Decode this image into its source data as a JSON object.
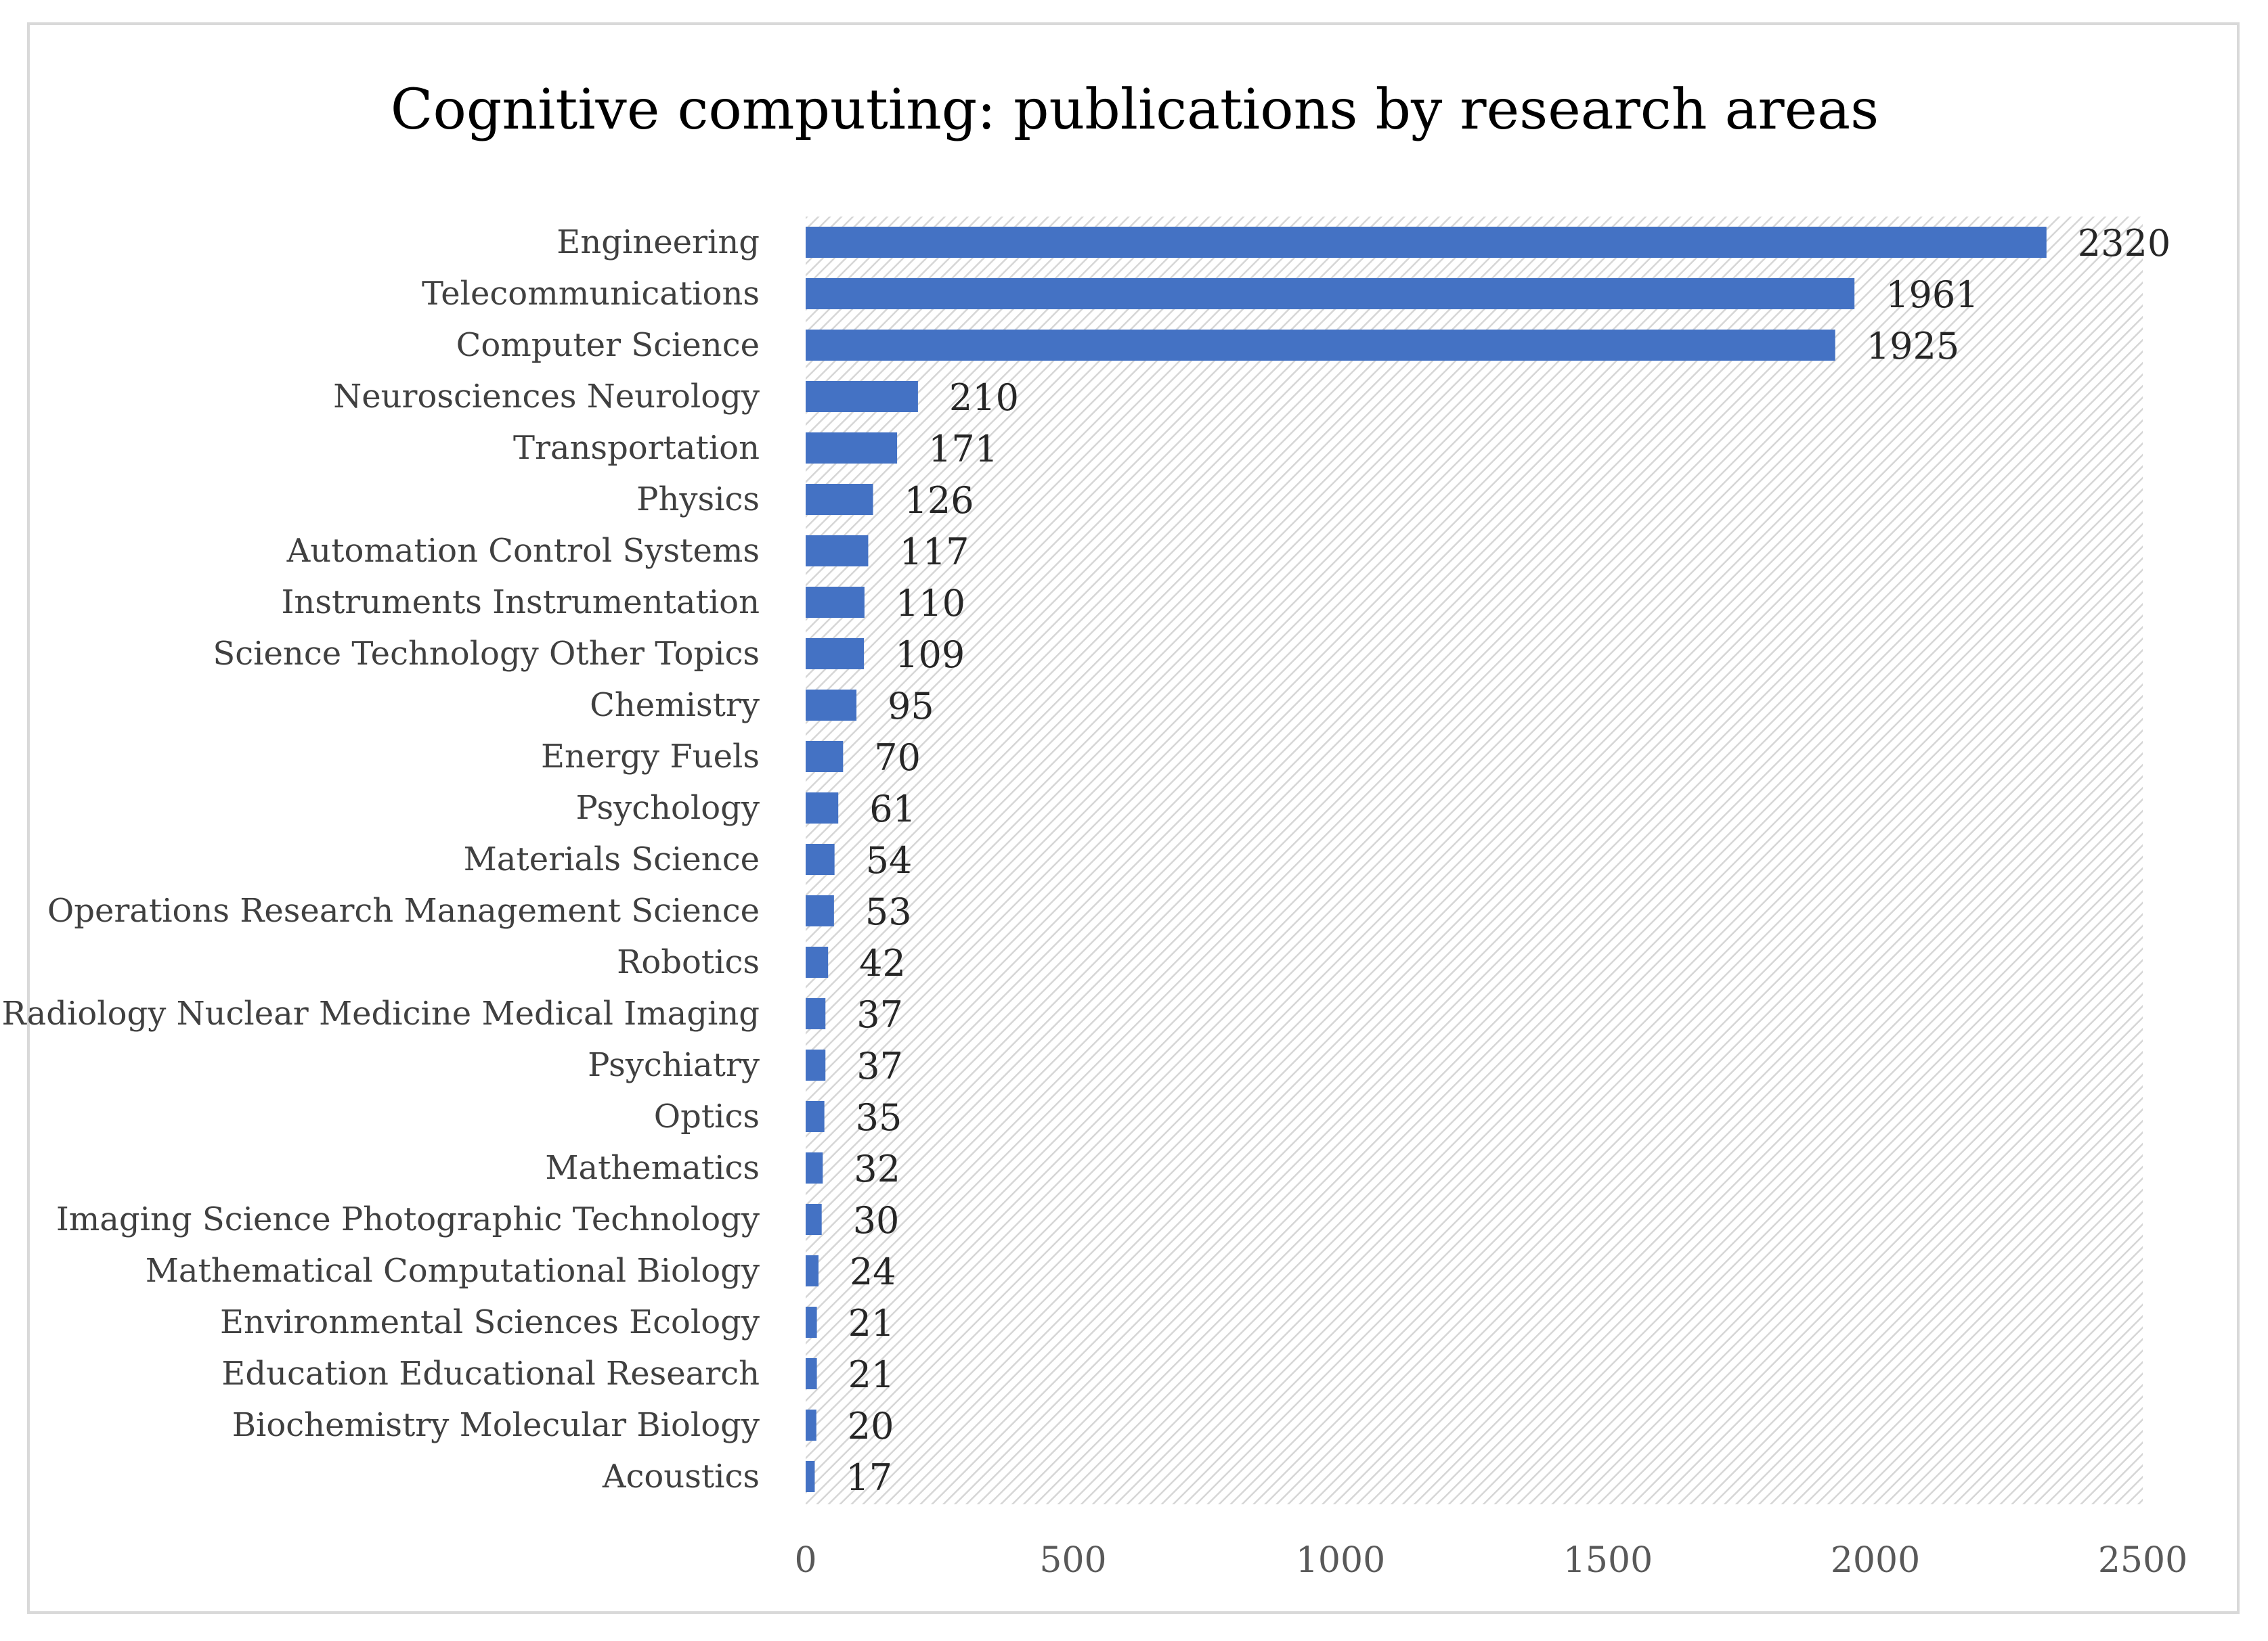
{
  "chart_data": {
    "type": "bar",
    "orientation": "horizontal",
    "title": "Cognitive computing: publications by research areas",
    "xlabel": "",
    "ylabel": "",
    "xlim": [
      0,
      2500
    ],
    "xticks": [
      "0",
      "500",
      "1000",
      "1500",
      "2000",
      "2500"
    ],
    "grid": false,
    "legend": "none",
    "bar_color": "#4472C4",
    "plot_background": "light gray diagonal hatch",
    "categories": [
      "Engineering",
      "Telecommunications",
      "Computer Science",
      "Neurosciences Neurology",
      "Transportation",
      "Physics",
      "Automation Control Systems",
      "Instruments Instrumentation",
      "Science Technology Other Topics",
      "Chemistry",
      "Energy Fuels",
      "Psychology",
      "Materials Science",
      "Operations Research Management Science",
      "Robotics",
      "Radiology Nuclear Medicine Medical Imaging",
      "Psychiatry",
      "Optics",
      "Mathematics",
      "Imaging Science Photographic Technology",
      "Mathematical Computational Biology",
      "Environmental Sciences Ecology",
      "Education Educational Research",
      "Biochemistry Molecular Biology",
      "Acoustics"
    ],
    "values": [
      2320,
      1961,
      1925,
      210,
      171,
      126,
      117,
      110,
      109,
      95,
      70,
      61,
      54,
      53,
      42,
      37,
      37,
      35,
      32,
      30,
      24,
      21,
      21,
      20,
      17
    ],
    "value_labels": [
      "2320",
      "1961",
      "1925",
      "210",
      "171",
      "126",
      "117",
      "110",
      "109",
      "95",
      "70",
      "61",
      "54",
      "53",
      "42",
      "37",
      "37",
      "35",
      "32",
      "30",
      "24",
      "21",
      "21",
      "20",
      "17"
    ]
  }
}
